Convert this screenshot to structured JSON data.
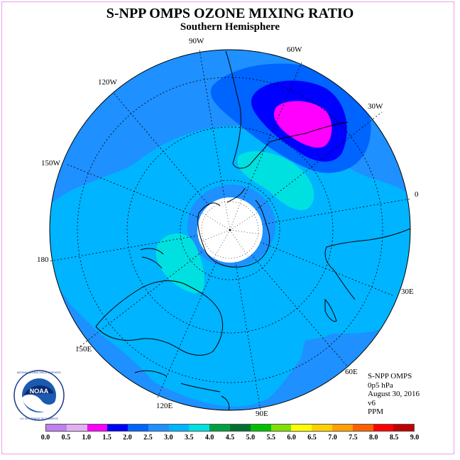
{
  "header": {
    "title": "S-NPP OMPS OZONE MIXING RATIO",
    "subtitle": "Southern Hemisphere"
  },
  "longitude_labels": {
    "lon_90w": "90W",
    "lon_60w": "60W",
    "lon_30w": "30W",
    "lon_120w": "120W",
    "lon_150w": "150W",
    "lon_0": "0",
    "lon_180": "180",
    "lon_30e": "30E",
    "lon_60e": "60E",
    "lon_90e": "90E",
    "lon_120e": "120E",
    "lon_150e": "150E"
  },
  "info": {
    "instrument": "S-NPP OMPS",
    "level": "0p5 hPa",
    "date": "August 30, 2016",
    "version": "v6",
    "units": "PPM"
  },
  "colorbar": {
    "ticks": [
      "0.0",
      "0.5",
      "1.0",
      "1.5",
      "2.0",
      "2.5",
      "3.0",
      "3.5",
      "4.0",
      "4.5",
      "5.0",
      "5.5",
      "6.0",
      "6.5",
      "7.0",
      "7.5",
      "8.0",
      "8.5",
      "9.0"
    ],
    "colors": [
      "#c080f0",
      "#e0b0f0",
      "#ff00ff",
      "#0000ff",
      "#0064ff",
      "#1e90ff",
      "#00b4ff",
      "#00e0e0",
      "#00a040",
      "#007030",
      "#00c000",
      "#80e000",
      "#ffff00",
      "#ffd000",
      "#ffa000",
      "#ff6000",
      "#ff0000",
      "#c00000",
      "#8b5a3a"
    ]
  },
  "colors": {
    "deep_blue": "#0000ff",
    "magenta": "#ff00ff",
    "mid_blue": "#1e90ff",
    "sky_blue": "#00b4ff",
    "cyan": "#00e0e0",
    "pole_hole": "#ffffff"
  },
  "logo": {
    "text": "NOAA",
    "ring_text": "NATIONAL OCEANIC AND ATMOSPHERIC ADMINISTRATION · U.S. DEPARTMENT OF COMMERCE"
  }
}
